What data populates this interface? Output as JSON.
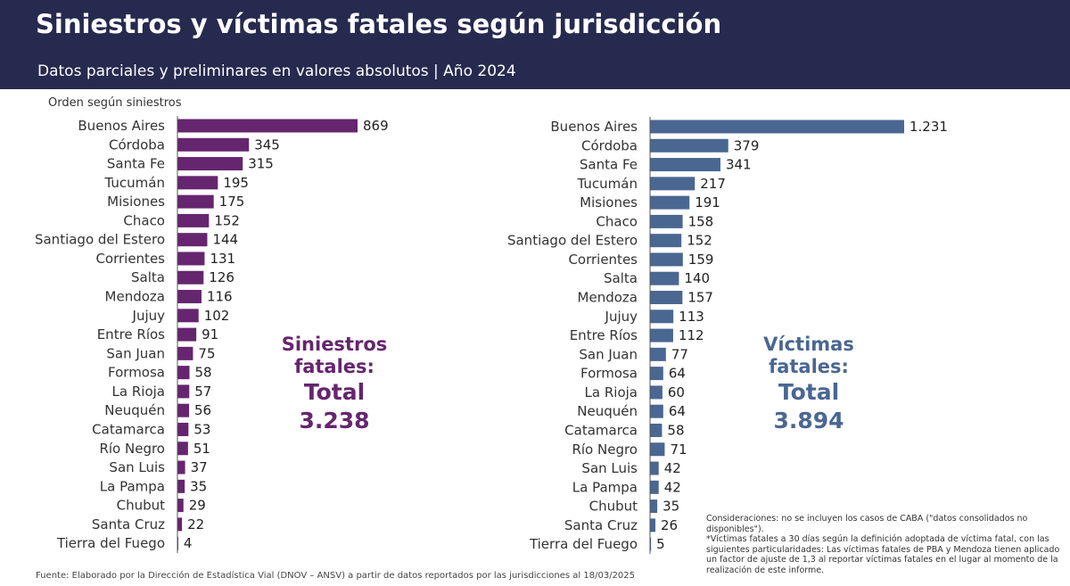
{
  "header": {
    "title": "Siniestros y víctimas fatales según jurisdicción",
    "subtitle": "Datos parciales y preliminares en valores absolutos | Año 2024"
  },
  "order_label": "Orden según siniestros",
  "left_total": {
    "line1": "Siniestros",
    "line2": "fatales:",
    "line3": "Total",
    "value": "3.238",
    "color": "#66256f"
  },
  "right_total": {
    "line1": "Víctimas",
    "line2": "fatales:",
    "line3": "Total",
    "value": "3.894",
    "color": "#4a6792"
  },
  "footer": {
    "source": "Fuente: Elaborado por la Dirección de Estadística Vial (DNOV – ANSV) a partir de datos reportados por las jurisdicciones al 18/03/2025",
    "note1": "Consideraciones: no se incluyen los casos de CABA (\"datos consolidados no disponibles\").",
    "note2": "*Víctimas fatales a 30 días según la definición adoptada de víctima fatal, con las siguientes particularidades: Las víctimas fatales de PBA y Mendoza tienen aplicado un factor de ajuste de 1,3 al reportar víctimas fatales en el lugar al momento de la realización de este informe."
  },
  "colors": {
    "header_bg": "#262a4f",
    "siniestros_bar": "#66256f",
    "victimas_bar": "#4a6792"
  },
  "chart_data": [
    {
      "type": "bar",
      "orientation": "horizontal",
      "title": "Siniestros fatales",
      "categories": [
        "Buenos Aires",
        "Córdoba",
        "Santa Fe",
        "Tucumán",
        "Misiones",
        "Chaco",
        "Santiago del Estero",
        "Corrientes",
        "Salta",
        "Mendoza",
        "Jujuy",
        "Entre Ríos",
        "San Juan",
        "Formosa",
        "La Rioja",
        "Neuquén",
        "Catamarca",
        "Río Negro",
        "San Luis",
        "La Pampa",
        "Chubut",
        "Santa Cruz",
        "Tierra del Fuego"
      ],
      "values": [
        869,
        345,
        315,
        195,
        175,
        152,
        144,
        131,
        126,
        116,
        102,
        91,
        75,
        58,
        57,
        56,
        53,
        51,
        37,
        35,
        29,
        22,
        4
      ],
      "value_labels": [
        "869",
        "345",
        "315",
        "195",
        "175",
        "152",
        "144",
        "131",
        "126",
        "116",
        "102",
        "91",
        "75",
        "58",
        "57",
        "56",
        "53",
        "51",
        "37",
        "35",
        "29",
        "22",
        "4"
      ],
      "color": "#66256f",
      "grid": false
    },
    {
      "type": "bar",
      "orientation": "horizontal",
      "title": "Víctimas fatales",
      "categories": [
        "Buenos Aires",
        "Córdoba",
        "Santa Fe",
        "Tucumán",
        "Misiones",
        "Chaco",
        "Santiago del Estero",
        "Corrientes",
        "Salta",
        "Mendoza",
        "Jujuy",
        "Entre Ríos",
        "San Juan",
        "Formosa",
        "La Rioja",
        "Neuquén",
        "Catamarca",
        "Río Negro",
        "San Luis",
        "La Pampa",
        "Chubut",
        "Santa Cruz",
        "Tierra del Fuego"
      ],
      "values": [
        1231,
        379,
        341,
        217,
        191,
        158,
        152,
        159,
        140,
        157,
        113,
        112,
        77,
        64,
        60,
        64,
        58,
        71,
        42,
        42,
        35,
        26,
        5
      ],
      "value_labels": [
        "1.231",
        "379",
        "341",
        "217",
        "191",
        "158",
        "152",
        "159",
        "140",
        "157",
        "113",
        "112",
        "77",
        "64",
        "60",
        "64",
        "58",
        "71",
        "42",
        "42",
        "35",
        "26",
        "5"
      ],
      "color": "#4a6792",
      "grid": false
    }
  ]
}
